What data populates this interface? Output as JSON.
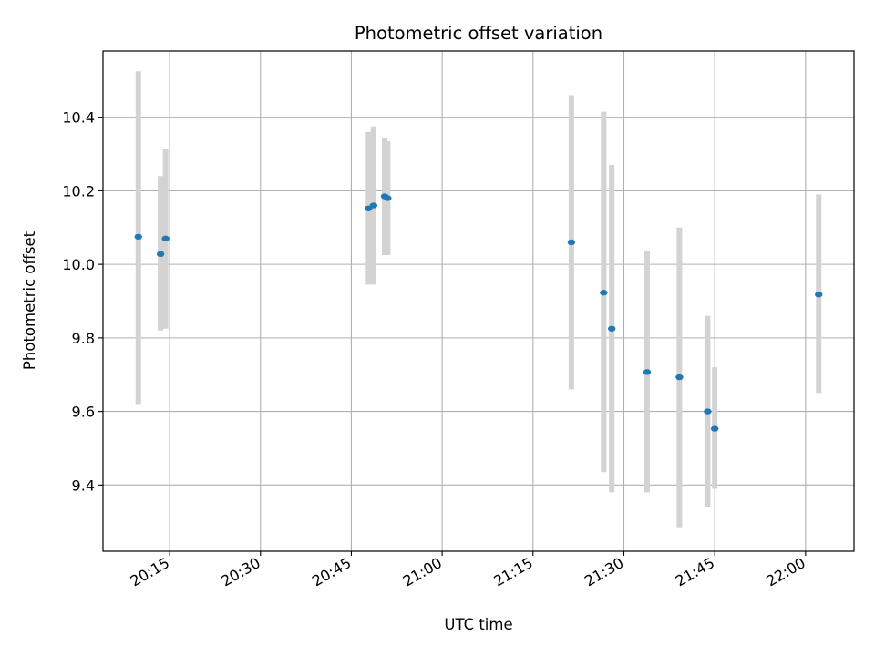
{
  "chart_data": {
    "type": "scatter",
    "title": "Photometric offset variation",
    "xlabel": "UTC time",
    "ylabel": "Photometric offset",
    "grid": true,
    "x_is_time": true,
    "xlim": [
      "20:04:00",
      "22:08:00"
    ],
    "ylim": [
      9.22,
      10.58
    ],
    "x_ticks": [
      "20:15",
      "20:30",
      "20:45",
      "21:00",
      "21:15",
      "21:30",
      "21:45",
      "22:00"
    ],
    "y_ticks": [
      9.4,
      9.6,
      9.8,
      10.0,
      10.2,
      10.4
    ],
    "y_tick_labels": [
      "9.4",
      "9.6",
      "9.8",
      "10.0",
      "10.2",
      "10.4"
    ],
    "series": [
      {
        "marker_color": "#1f77b4",
        "errorbar_color": "#d3d3d3",
        "points": [
          {
            "x": "20:09:50",
            "y": 10.075,
            "ylow": 9.62,
            "yhigh": 10.525
          },
          {
            "x": "20:13:30",
            "y": 10.028,
            "ylow": 9.82,
            "yhigh": 10.24
          },
          {
            "x": "20:14:20",
            "y": 10.07,
            "ylow": 9.825,
            "yhigh": 10.315
          },
          {
            "x": "20:47:50",
            "y": 10.152,
            "ylow": 9.945,
            "yhigh": 10.36
          },
          {
            "x": "20:48:40",
            "y": 10.16,
            "ylow": 9.945,
            "yhigh": 10.375
          },
          {
            "x": "20:50:30",
            "y": 10.185,
            "ylow": 10.025,
            "yhigh": 10.345
          },
          {
            "x": "20:51:00",
            "y": 10.18,
            "ylow": 10.025,
            "yhigh": 10.335
          },
          {
            "x": "21:21:20",
            "y": 10.06,
            "ylow": 9.66,
            "yhigh": 10.46
          },
          {
            "x": "21:26:40",
            "y": 9.923,
            "ylow": 9.435,
            "yhigh": 10.415
          },
          {
            "x": "21:28:00",
            "y": 9.825,
            "ylow": 9.38,
            "yhigh": 10.27
          },
          {
            "x": "21:33:50",
            "y": 9.707,
            "ylow": 9.38,
            "yhigh": 10.035
          },
          {
            "x": "21:39:10",
            "y": 9.693,
            "ylow": 9.285,
            "yhigh": 10.1
          },
          {
            "x": "21:43:50",
            "y": 9.6,
            "ylow": 9.34,
            "yhigh": 9.86
          },
          {
            "x": "21:45:00",
            "y": 9.553,
            "ylow": 9.39,
            "yhigh": 9.72
          },
          {
            "x": "22:02:10",
            "y": 9.918,
            "ylow": 9.65,
            "yhigh": 10.19
          }
        ]
      }
    ]
  }
}
